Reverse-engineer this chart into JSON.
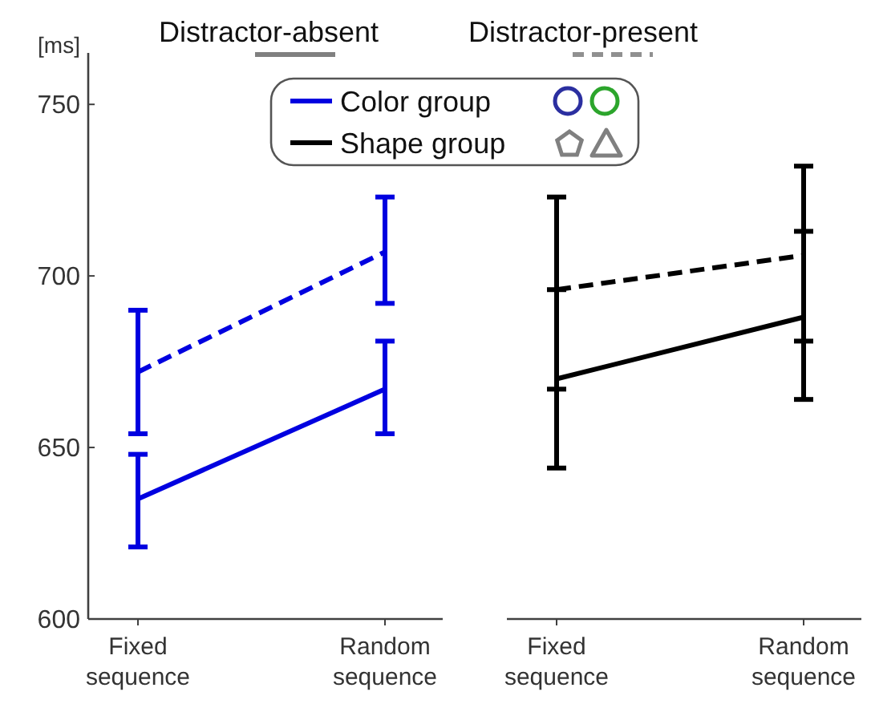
{
  "chart_data": {
    "type": "line",
    "ylabel": "[ms]",
    "categories": [
      "Fixed\nsequence",
      "Random\nsequence",
      "Fixed\nsequence",
      "Random\nsequence"
    ],
    "ylim": [
      600,
      765
    ],
    "yticks": [
      600,
      650,
      700,
      750
    ],
    "annotations": [
      "Distractor-absent",
      "Distractor-present",
      "Color group",
      "Shape group"
    ],
    "series": [
      {
        "color": "#0000e0",
        "line_style": "solid",
        "values": [
          635,
          667,
          null,
          null
        ],
        "errors": [
          [
            621,
            648
          ],
          [
            654,
            681
          ],
          null,
          null
        ]
      },
      {
        "color": "#0000e0",
        "line_style": "dashed",
        "values": [
          672,
          707,
          null,
          null
        ],
        "errors": [
          [
            654,
            690
          ],
          [
            692,
            723
          ],
          null,
          null
        ]
      },
      {
        "color": "#000000",
        "line_style": "solid",
        "values": [
          null,
          null,
          670,
          688
        ],
        "errors": [
          null,
          null,
          [
            667,
            696
          ],
          [
            681,
            713
          ]
        ]
      },
      {
        "color": "#000000",
        "line_style": "dashed",
        "values": [
          null,
          null,
          696,
          706
        ],
        "errors": [
          null,
          null,
          [
            644,
            723
          ],
          [
            664,
            732
          ]
        ]
      }
    ]
  }
}
